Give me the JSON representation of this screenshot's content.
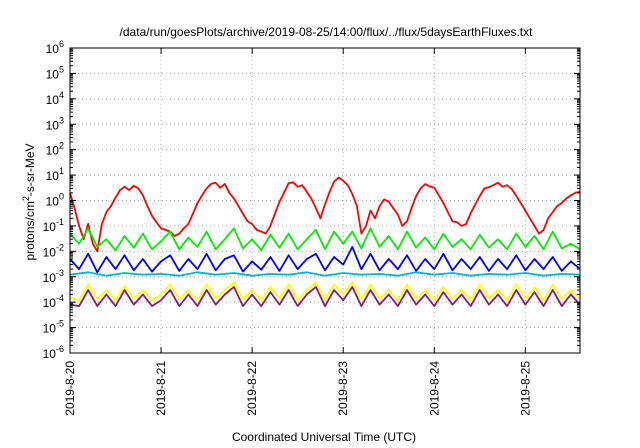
{
  "chart_data": {
    "type": "line",
    "title": "/data/run/goesPlots/archive/2019-08-25/14:00/flux/../flux/5daysEarthFluxes.txt",
    "xlabel": "Coordinated Universal Time (UTC)",
    "ylabel": {
      "prefix": "protons/cm",
      "superscript": "2",
      "suffix": "-s-sr-MeV"
    },
    "y_scale": "log",
    "ylim": [
      -6,
      6
    ],
    "y_ticks": [
      {
        "base": "10",
        "exp": "-6"
      },
      {
        "base": "10",
        "exp": "-5"
      },
      {
        "base": "10",
        "exp": "-4"
      },
      {
        "base": "10",
        "exp": "-3"
      },
      {
        "base": "10",
        "exp": "-2"
      },
      {
        "base": "10",
        "exp": "-1"
      },
      {
        "base": "10",
        "exp": "0"
      },
      {
        "base": "10",
        "exp": "1"
      },
      {
        "base": "10",
        "exp": "2"
      },
      {
        "base": "10",
        "exp": "3"
      },
      {
        "base": "10",
        "exp": "4"
      },
      {
        "base": "10",
        "exp": "5"
      },
      {
        "base": "10",
        "exp": "6"
      }
    ],
    "x_domain_days": [
      0,
      5.6
    ],
    "x_ticks": [
      {
        "label": "2019-8-20",
        "day": 0
      },
      {
        "label": "2019-8-21",
        "day": 1
      },
      {
        "label": "2019-8-22",
        "day": 2
      },
      {
        "label": "2019-8-23",
        "day": 3
      },
      {
        "label": "2019-8-24",
        "day": 4
      },
      {
        "label": "2019-8-25",
        "day": 5
      }
    ],
    "grid": true,
    "legend": "none",
    "series": [
      {
        "color": "#ff0000",
        "x": [
          0,
          0.05,
          0.1,
          0.15,
          0.2,
          0.25,
          0.3,
          0.35,
          0.4,
          0.45,
          0.5,
          0.55,
          0.6,
          0.65,
          0.7,
          0.75,
          0.8,
          0.85,
          0.9,
          0.95,
          1,
          1.05,
          1.1,
          1.15,
          1.2,
          1.25,
          1.3,
          1.35,
          1.4,
          1.45,
          1.5,
          1.55,
          1.6,
          1.65,
          1.7,
          1.75,
          1.8,
          1.85,
          1.9,
          1.95,
          2,
          2.05,
          2.1,
          2.15,
          2.2,
          2.25,
          2.3,
          2.35,
          2.4,
          2.45,
          2.5,
          2.55,
          2.6,
          2.65,
          2.7,
          2.75,
          2.8,
          2.85,
          2.9,
          2.95,
          3,
          3.05,
          3.1,
          3.15,
          3.2,
          3.25,
          3.3,
          3.35,
          3.4,
          3.45,
          3.5,
          3.55,
          3.6,
          3.65,
          3.7,
          3.75,
          3.8,
          3.85,
          3.9,
          3.95,
          4,
          4.05,
          4.1,
          4.15,
          4.2,
          4.25,
          4.3,
          4.35,
          4.4,
          4.45,
          4.5,
          4.55,
          4.6,
          4.65,
          4.7,
          4.75,
          4.8,
          4.85,
          4.9,
          4.95,
          5,
          5.05,
          5.1,
          5.15,
          5.2,
          5.25,
          5.3,
          5.35,
          5.4,
          5.45,
          5.5,
          5.55,
          5.6
        ],
        "y": [
          2,
          0.5,
          0.1,
          0.03,
          0.12,
          0.02,
          0.01,
          0.12,
          0.35,
          0.6,
          1.3,
          2.6,
          3.5,
          2.6,
          3.8,
          3,
          1.6,
          0.6,
          0.25,
          0.14,
          0.08,
          0.07,
          0.06,
          0.04,
          0.05,
          0.08,
          0.12,
          0.3,
          0.8,
          1.6,
          3,
          4.5,
          5,
          3.2,
          4.5,
          2,
          1.2,
          0.6,
          0.3,
          0.15,
          0.12,
          0.07,
          0.06,
          0.05,
          0.1,
          0.3,
          0.9,
          2,
          4.8,
          5.2,
          3.5,
          4,
          2.2,
          1.2,
          0.5,
          0.2,
          0.7,
          2.2,
          5.5,
          8,
          6,
          4,
          1.8,
          0.6,
          0.05,
          0.1,
          0.4,
          0.2,
          0.6,
          1.1,
          0.9,
          0.5,
          0.28,
          0.1,
          0.15,
          0.5,
          1.5,
          3,
          4.4,
          3.6,
          3.2,
          1.6,
          0.8,
          0.35,
          0.15,
          0.14,
          0.1,
          0.12,
          0.32,
          0.7,
          1.5,
          3,
          3.3,
          4,
          5,
          3.5,
          4,
          2.8,
          1.5,
          0.8,
          0.4,
          0.2,
          0.1,
          0.05,
          0.07,
          0.2,
          0.35,
          0.6,
          0.8,
          1.2,
          1.6,
          2,
          2.2
        ]
      },
      {
        "color": "#00ee00",
        "x": [
          0,
          0.1,
          0.2,
          0.3,
          0.4,
          0.5,
          0.6,
          0.7,
          0.8,
          0.9,
          1,
          1.1,
          1.2,
          1.3,
          1.4,
          1.5,
          1.6,
          1.7,
          1.8,
          1.9,
          2,
          2.1,
          2.2,
          2.3,
          2.4,
          2.5,
          2.6,
          2.7,
          2.8,
          2.9,
          3,
          3.1,
          3.2,
          3.3,
          3.4,
          3.5,
          3.6,
          3.7,
          3.8,
          3.9,
          4,
          4.1,
          4.2,
          4.3,
          4.4,
          4.5,
          4.6,
          4.7,
          4.8,
          4.9,
          5,
          5.1,
          5.2,
          5.3,
          5.4,
          5.5,
          5.6
        ],
        "y": [
          0.05,
          0.02,
          0.08,
          0.015,
          0.03,
          0.011,
          0.04,
          0.014,
          0.05,
          0.012,
          0.025,
          0.06,
          0.012,
          0.035,
          0.015,
          0.06,
          0.012,
          0.03,
          0.08,
          0.013,
          0.03,
          0.011,
          0.045,
          0.014,
          0.05,
          0.012,
          0.03,
          0.07,
          0.012,
          0.06,
          0.02,
          0.06,
          0.013,
          0.08,
          0.015,
          0.04,
          0.012,
          0.06,
          0.014,
          0.035,
          0.012,
          0.05,
          0.015,
          0.03,
          0.012,
          0.045,
          0.014,
          0.03,
          0.012,
          0.05,
          0.015,
          0.04,
          0.012,
          0.06,
          0.013,
          0.02,
          0.012
        ]
      },
      {
        "color": "#0000ff",
        "x": [
          0,
          0.1,
          0.2,
          0.3,
          0.4,
          0.5,
          0.6,
          0.7,
          0.8,
          0.9,
          1,
          1.1,
          1.2,
          1.3,
          1.4,
          1.5,
          1.6,
          1.7,
          1.8,
          1.9,
          2,
          2.1,
          2.2,
          2.3,
          2.4,
          2.5,
          2.6,
          2.7,
          2.8,
          2.9,
          3,
          3.1,
          3.2,
          3.3,
          3.4,
          3.5,
          3.6,
          3.7,
          3.8,
          3.9,
          4,
          4.1,
          4.2,
          4.3,
          4.4,
          4.5,
          4.6,
          4.7,
          4.8,
          4.9,
          5,
          5.1,
          5.2,
          5.3,
          5.4,
          5.5,
          5.6
        ],
        "y": [
          0.005,
          0.002,
          0.008,
          0.0015,
          0.006,
          0.002,
          0.007,
          0.0018,
          0.005,
          0.0016,
          0.004,
          0.007,
          0.0017,
          0.005,
          0.002,
          0.008,
          0.0018,
          0.005,
          0.007,
          0.0016,
          0.004,
          0.0019,
          0.006,
          0.0017,
          0.007,
          0.002,
          0.005,
          0.008,
          0.0018,
          0.006,
          0.003,
          0.015,
          0.002,
          0.008,
          0.0018,
          0.005,
          0.002,
          0.007,
          0.0017,
          0.005,
          0.002,
          0.008,
          0.0018,
          0.005,
          0.002,
          0.006,
          0.0017,
          0.005,
          0.002,
          0.007,
          0.0018,
          0.005,
          0.002,
          0.006,
          0.0017,
          0.004,
          0.002
        ]
      },
      {
        "color": "#00b8d0",
        "x": [
          0,
          0.2,
          0.4,
          0.6,
          0.8,
          1,
          1.2,
          1.4,
          1.6,
          1.8,
          2,
          2.2,
          2.4,
          2.6,
          2.8,
          3,
          3.2,
          3.4,
          3.6,
          3.8,
          4,
          4.2,
          4.4,
          4.6,
          4.8,
          5,
          5.2,
          5.4,
          5.6
        ],
        "y": [
          0.0012,
          0.0015,
          0.0011,
          0.0014,
          0.0012,
          0.0013,
          0.0011,
          0.0015,
          0.0012,
          0.0014,
          0.0011,
          0.0013,
          0.0012,
          0.0015,
          0.0011,
          0.0014,
          0.0012,
          0.0013,
          0.0011,
          0.0015,
          0.0012,
          0.0014,
          0.0011,
          0.0013,
          0.0012,
          0.0014,
          0.0011,
          0.0013,
          0.0012
        ]
      },
      {
        "color": "#ffff00",
        "x": [
          0,
          0.1,
          0.2,
          0.3,
          0.4,
          0.5,
          0.6,
          0.7,
          0.8,
          0.9,
          1,
          1.1,
          1.2,
          1.3,
          1.4,
          1.5,
          1.6,
          1.7,
          1.8,
          1.9,
          2,
          2.1,
          2.2,
          2.3,
          2.4,
          2.5,
          2.6,
          2.7,
          2.8,
          2.9,
          3,
          3.1,
          3.2,
          3.3,
          3.4,
          3.5,
          3.6,
          3.7,
          3.8,
          3.9,
          4,
          4.1,
          4.2,
          4.3,
          4.4,
          4.5,
          4.6,
          4.7,
          4.8,
          4.9,
          5,
          5.1,
          5.2,
          5.3,
          5.4,
          5.5,
          5.6
        ],
        "y": [
          0.00015,
          0.00012,
          0.0005,
          0.00013,
          0.0003,
          0.00012,
          0.00045,
          0.00014,
          0.0003,
          0.00012,
          0.0002,
          0.0005,
          0.00013,
          0.0003,
          0.00012,
          0.0005,
          0.00014,
          0.0003,
          0.0006,
          0.00013,
          0.0003,
          0.00012,
          0.0004,
          0.00014,
          0.0005,
          0.00012,
          0.0003,
          0.0006,
          0.00013,
          0.0005,
          0.0002,
          0.0006,
          0.00013,
          0.0005,
          0.00014,
          0.0003,
          0.00012,
          0.0005,
          0.00014,
          0.0003,
          0.00012,
          0.0004,
          0.00014,
          0.0003,
          0.00012,
          0.0005,
          0.00014,
          0.0003,
          0.00012,
          0.0005,
          0.00014,
          0.0004,
          0.00012,
          0.0005,
          0.00013,
          0.0003,
          0.00014
        ]
      },
      {
        "color": "#8b1a6b",
        "x": [
          0,
          0.1,
          0.2,
          0.3,
          0.4,
          0.5,
          0.6,
          0.7,
          0.8,
          0.9,
          1,
          1.1,
          1.2,
          1.3,
          1.4,
          1.5,
          1.6,
          1.7,
          1.8,
          1.9,
          2,
          2.1,
          2.2,
          2.3,
          2.4,
          2.5,
          2.6,
          2.7,
          2.8,
          2.9,
          3,
          3.1,
          3.2,
          3.3,
          3.4,
          3.5,
          3.6,
          3.7,
          3.8,
          3.9,
          4,
          4.1,
          4.2,
          4.3,
          4.4,
          4.5,
          4.6,
          4.7,
          4.8,
          4.9,
          5,
          5.1,
          5.2,
          5.3,
          5.4,
          5.5,
          5.6
        ],
        "y": [
          8e-05,
          7e-05,
          0.0003,
          7e-05,
          0.0002,
          7e-05,
          0.0003,
          8e-05,
          0.0002,
          7e-05,
          0.00012,
          0.0003,
          7e-05,
          0.0002,
          7e-05,
          0.0003,
          8e-05,
          0.0002,
          0.0004,
          7e-05,
          0.0002,
          7e-05,
          0.00025,
          8e-05,
          0.0003,
          7e-05,
          0.0002,
          0.0004,
          7e-05,
          0.0003,
          0.00012,
          0.0004,
          7e-05,
          0.0003,
          8e-05,
          0.0002,
          7e-05,
          0.0003,
          8e-05,
          0.0002,
          7e-05,
          0.00025,
          8e-05,
          0.0002,
          7e-05,
          0.0003,
          8e-05,
          0.0002,
          7e-05,
          0.0003,
          8e-05,
          0.00025,
          7e-05,
          0.0003,
          7e-05,
          0.0002,
          8e-05
        ]
      }
    ]
  }
}
